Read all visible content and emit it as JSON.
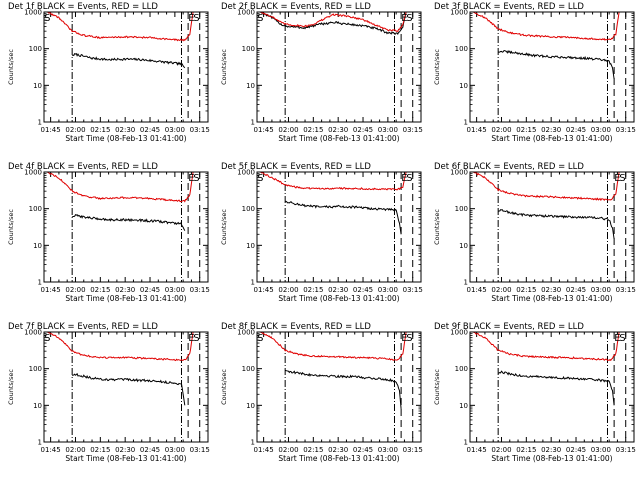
{
  "colors": {
    "events": "#000000",
    "lld": "#e00000",
    "axes": "#000000",
    "background": "#ffffff"
  },
  "chart_data": [
    {
      "type": "line",
      "title": "Det 1f BLACK = Events, RED = LLD",
      "xlabel": "Start Time (08-Feb-13 01:41:00)",
      "ylabel": "Counts/sec",
      "yscale": "log",
      "ylim": [
        1,
        1000
      ],
      "ytick_labels": [
        "1",
        "10",
        "100",
        "1000"
      ],
      "xlim": [
        "01:41",
        "03:20"
      ],
      "xtick_labels": [
        "01:45",
        "02:00",
        "02:15",
        "02:30",
        "02:45",
        "03:00",
        "03:15"
      ],
      "grid": false,
      "legend": "none",
      "markers": [
        {
          "label": "S",
          "x": "01:43"
        },
        {
          "label": "E",
          "x": "03:10"
        },
        {
          "label": "S",
          "x": "03:13"
        }
      ],
      "dashdot_lines": [
        "01:58",
        "03:04"
      ],
      "dashed_lines": [
        "03:08",
        "03:15"
      ],
      "series": [
        {
          "name": "Events",
          "color": "#000000",
          "x": [
            "01:58",
            "02:00",
            "02:10",
            "02:20",
            "02:30",
            "02:40",
            "02:50",
            "03:00",
            "03:04",
            "03:06"
          ],
          "values": [
            65,
            70,
            55,
            50,
            52,
            50,
            45,
            40,
            38,
            30
          ]
        },
        {
          "name": "LLD",
          "color": "#e00000",
          "x": [
            "01:43",
            "01:50",
            "01:58",
            "02:05",
            "02:15",
            "02:30",
            "02:45",
            "03:00",
            "03:06",
            "03:09",
            "03:11"
          ],
          "values": [
            1000,
            700,
            300,
            230,
            200,
            210,
            200,
            175,
            170,
            250,
            1000
          ]
        }
      ]
    },
    {
      "type": "line",
      "title": "Det 2f BLACK = Events, RED = LLD",
      "xlabel": "Start Time (08-Feb-13 01:41:00)",
      "ylabel": "Counts/sec",
      "yscale": "log",
      "ylim": [
        1,
        1000
      ],
      "ytick_labels": [
        "1",
        "10",
        "100",
        "1000"
      ],
      "xlim": [
        "01:41",
        "03:20"
      ],
      "xtick_labels": [
        "01:45",
        "02:00",
        "02:15",
        "02:30",
        "02:45",
        "03:00",
        "03:15"
      ],
      "grid": false,
      "legend": "none",
      "markers": [
        {
          "label": "S",
          "x": "01:43"
        },
        {
          "label": "E",
          "x": "03:10"
        },
        {
          "label": "S",
          "x": "03:13"
        }
      ],
      "dashdot_lines": [
        "01:58",
        "03:04"
      ],
      "dashed_lines": [
        "03:08",
        "03:15"
      ],
      "series": [
        {
          "name": "Events",
          "color": "#000000",
          "x": [
            "01:43",
            "01:50",
            "01:56",
            "02:00",
            "02:10",
            "02:15",
            "02:20",
            "02:27",
            "02:35",
            "02:45",
            "02:52",
            "03:00",
            "03:06",
            "03:09",
            "03:11"
          ],
          "values": [
            1000,
            700,
            450,
            400,
            370,
            420,
            470,
            520,
            470,
            420,
            360,
            270,
            260,
            380,
            1000
          ]
        },
        {
          "name": "LLD",
          "color": "#e00000",
          "x": [
            "01:43",
            "01:50",
            "01:56",
            "02:00",
            "02:10",
            "02:15",
            "02:20",
            "02:27",
            "02:35",
            "02:45",
            "02:52",
            "03:00",
            "03:06",
            "03:09",
            "03:11"
          ],
          "values": [
            1000,
            750,
            500,
            450,
            410,
            460,
            600,
            850,
            780,
            620,
            450,
            320,
            310,
            450,
            1000
          ]
        }
      ]
    },
    {
      "type": "line",
      "title": "Det 3f BLACK = Events, RED = LLD",
      "xlabel": "Start Time (08-Feb-13 01:41:00)",
      "ylabel": "Counts/sec",
      "yscale": "log",
      "ylim": [
        1,
        1000
      ],
      "ytick_labels": [
        "1",
        "10",
        "100",
        "1000"
      ],
      "xlim": [
        "01:41",
        "03:20"
      ],
      "xtick_labels": [
        "01:45",
        "02:00",
        "02:15",
        "02:30",
        "02:45",
        "03:00",
        "03:15"
      ],
      "grid": false,
      "legend": "none",
      "markers": [],
      "dashdot_lines": [
        "01:58",
        "03:04"
      ],
      "dashed_lines": [
        "03:08",
        "03:15"
      ],
      "series": [
        {
          "name": "Events",
          "color": "#000000",
          "x": [
            "01:58",
            "02:00",
            "02:10",
            "02:20",
            "02:30",
            "02:40",
            "02:50",
            "03:00",
            "03:05",
            "03:07",
            "03:08"
          ],
          "values": [
            80,
            85,
            75,
            65,
            60,
            58,
            55,
            50,
            45,
            30,
            15
          ]
        },
        {
          "name": "LLD",
          "color": "#e00000",
          "x": [
            "01:43",
            "01:50",
            "01:58",
            "02:05",
            "02:15",
            "02:30",
            "02:45",
            "03:00",
            "03:06",
            "03:09",
            "03:11"
          ],
          "values": [
            1000,
            700,
            350,
            270,
            230,
            210,
            200,
            180,
            175,
            250,
            1000
          ]
        }
      ]
    },
    {
      "type": "line",
      "title": "Det 4f BLACK = Events, RED = LLD",
      "xlabel": "Start Time (08-Feb-13 01:41:00)",
      "ylabel": "Counts/sec",
      "yscale": "log",
      "ylim": [
        1,
        1000
      ],
      "ytick_labels": [
        "1",
        "10",
        "100",
        "1000"
      ],
      "xlim": [
        "01:41",
        "03:20"
      ],
      "xtick_labels": [
        "01:45",
        "02:00",
        "02:15",
        "02:30",
        "02:45",
        "03:00",
        "03:15"
      ],
      "grid": false,
      "legend": "none",
      "markers": [
        {
          "label": "E",
          "x": "03:10"
        },
        {
          "label": "S",
          "x": "03:13"
        }
      ],
      "dashdot_lines": [
        "01:58",
        "03:04"
      ],
      "dashed_lines": [
        "03:08",
        "03:15"
      ],
      "series": [
        {
          "name": "Events",
          "color": "#000000",
          "x": [
            "01:58",
            "02:00",
            "02:10",
            "02:20",
            "02:30",
            "02:40",
            "02:50",
            "03:00",
            "03:04",
            "03:06"
          ],
          "values": [
            60,
            65,
            55,
            50,
            50,
            48,
            45,
            40,
            38,
            25
          ]
        },
        {
          "name": "LLD",
          "color": "#e00000",
          "x": [
            "01:43",
            "01:50",
            "01:58",
            "02:05",
            "02:15",
            "02:30",
            "02:45",
            "03:00",
            "03:06",
            "03:09",
            "03:11"
          ],
          "values": [
            1000,
            700,
            300,
            220,
            190,
            200,
            190,
            165,
            160,
            240,
            1000
          ]
        }
      ]
    },
    {
      "type": "line",
      "title": "Det 5f BLACK = Events, RED = LLD",
      "xlabel": "Start Time (08-Feb-13 01:41:00)",
      "ylabel": "Counts/sec",
      "yscale": "log",
      "ylim": [
        1,
        1000
      ],
      "ytick_labels": [
        "1",
        "10",
        "100",
        "1000"
      ],
      "xlim": [
        "01:41",
        "03:20"
      ],
      "xtick_labels": [
        "01:45",
        "02:00",
        "02:15",
        "02:30",
        "02:45",
        "03:00",
        "03:15"
      ],
      "grid": false,
      "legend": "none",
      "markers": [
        {
          "label": "S",
          "x": "01:43"
        },
        {
          "label": "E",
          "x": "03:10"
        },
        {
          "label": "S",
          "x": "03:13"
        }
      ],
      "dashdot_lines": [
        "01:58",
        "03:04"
      ],
      "dashed_lines": [
        "03:08",
        "03:15"
      ],
      "series": [
        {
          "name": "Events",
          "color": "#000000",
          "x": [
            "01:58",
            "02:00",
            "02:10",
            "02:20",
            "02:30",
            "02:40",
            "02:50",
            "03:00",
            "03:05",
            "03:07",
            "03:08"
          ],
          "values": [
            160,
            150,
            120,
            110,
            115,
            110,
            100,
            95,
            90,
            40,
            20
          ]
        },
        {
          "name": "LLD",
          "color": "#e00000",
          "x": [
            "01:43",
            "01:50",
            "01:58",
            "02:05",
            "02:15",
            "02:30",
            "02:45",
            "03:00",
            "03:06",
            "03:09",
            "03:11"
          ],
          "values": [
            1000,
            700,
            450,
            380,
            350,
            360,
            350,
            340,
            330,
            400,
            1000
          ]
        }
      ]
    },
    {
      "type": "line",
      "title": "Det 6f BLACK = Events, RED = LLD",
      "xlabel": "Start Time (08-Feb-13 01:41:00)",
      "ylabel": "Counts/sec",
      "yscale": "log",
      "ylim": [
        1,
        1000
      ],
      "ytick_labels": [
        "1",
        "10",
        "100",
        "1000"
      ],
      "xlim": [
        "01:41",
        "03:20"
      ],
      "xtick_labels": [
        "01:45",
        "02:00",
        "02:15",
        "02:30",
        "02:45",
        "03:00",
        "03:15"
      ],
      "grid": false,
      "legend": "none",
      "markers": [
        {
          "label": "E",
          "x": "03:10"
        },
        {
          "label": "S",
          "x": "03:13"
        }
      ],
      "dashdot_lines": [
        "01:58",
        "03:04"
      ],
      "dashed_lines": [
        "03:08",
        "03:15"
      ],
      "series": [
        {
          "name": "Events",
          "color": "#000000",
          "x": [
            "01:58",
            "02:00",
            "02:10",
            "02:20",
            "02:30",
            "02:40",
            "02:50",
            "03:00",
            "03:05",
            "03:07",
            "03:08"
          ],
          "values": [
            85,
            90,
            70,
            65,
            62,
            60,
            58,
            55,
            50,
            30,
            15
          ]
        },
        {
          "name": "LLD",
          "color": "#e00000",
          "x": [
            "01:43",
            "01:50",
            "01:58",
            "02:05",
            "02:15",
            "02:30",
            "02:45",
            "03:00",
            "03:06",
            "03:09",
            "03:11"
          ],
          "values": [
            1000,
            700,
            330,
            260,
            220,
            210,
            195,
            180,
            175,
            250,
            1000
          ]
        }
      ]
    },
    {
      "type": "line",
      "title": "Det 7f BLACK = Events, RED = LLD",
      "xlabel": "Start Time (08-Feb-13 01:41:00)",
      "ylabel": "Counts/sec",
      "yscale": "log",
      "ylim": [
        1,
        1000
      ],
      "ytick_labels": [
        "1",
        "10",
        "100",
        "1000"
      ],
      "xlim": [
        "01:41",
        "03:20"
      ],
      "xtick_labels": [
        "01:45",
        "02:00",
        "02:15",
        "02:30",
        "02:45",
        "03:00",
        "03:15"
      ],
      "grid": false,
      "legend": "none",
      "markers": [
        {
          "label": "S",
          "x": "01:43"
        },
        {
          "label": "E",
          "x": "03:10"
        },
        {
          "label": "S",
          "x": "03:13"
        }
      ],
      "dashdot_lines": [
        "01:58",
        "03:04"
      ],
      "dashed_lines": [
        "03:08",
        "03:15"
      ],
      "series": [
        {
          "name": "Events",
          "color": "#000000",
          "x": [
            "01:58",
            "02:00",
            "02:10",
            "02:20",
            "02:30",
            "02:40",
            "02:50",
            "03:00",
            "03:04",
            "03:06"
          ],
          "values": [
            65,
            70,
            55,
            50,
            50,
            48,
            45,
            40,
            38,
            10
          ]
        },
        {
          "name": "LLD",
          "color": "#e00000",
          "x": [
            "01:43",
            "01:50",
            "01:58",
            "02:05",
            "02:15",
            "02:30",
            "02:45",
            "03:00",
            "03:06",
            "03:09",
            "03:11"
          ],
          "values": [
            1000,
            700,
            300,
            230,
            200,
            200,
            190,
            175,
            170,
            250,
            1000
          ]
        }
      ]
    },
    {
      "type": "line",
      "title": "Det 8f BLACK = Events, RED = LLD",
      "xlabel": "Start Time (08-Feb-13 01:41:00)",
      "ylabel": "Counts/sec",
      "yscale": "log",
      "ylim": [
        1,
        1000
      ],
      "ytick_labels": [
        "1",
        "10",
        "100",
        "1000"
      ],
      "xlim": [
        "01:41",
        "03:20"
      ],
      "xtick_labels": [
        "01:45",
        "02:00",
        "02:15",
        "02:30",
        "02:45",
        "03:00",
        "03:15"
      ],
      "grid": false,
      "legend": "none",
      "markers": [
        {
          "label": "S",
          "x": "01:43"
        },
        {
          "label": "E",
          "x": "03:10"
        },
        {
          "label": "S",
          "x": "03:13"
        }
      ],
      "dashdot_lines": [
        "01:58",
        "03:04"
      ],
      "dashed_lines": [
        "03:08",
        "03:15"
      ],
      "series": [
        {
          "name": "Events",
          "color": "#000000",
          "x": [
            "01:58",
            "02:00",
            "02:10",
            "02:20",
            "02:30",
            "02:40",
            "02:50",
            "03:00",
            "03:05",
            "03:07",
            "03:08"
          ],
          "values": [
            90,
            85,
            70,
            65,
            62,
            60,
            55,
            50,
            45,
            25,
            8
          ]
        },
        {
          "name": "LLD",
          "color": "#e00000",
          "x": [
            "01:43",
            "01:50",
            "01:58",
            "02:05",
            "02:15",
            "02:30",
            "02:45",
            "03:00",
            "03:06",
            "03:09",
            "03:11"
          ],
          "values": [
            1000,
            700,
            320,
            250,
            220,
            210,
            200,
            185,
            175,
            250,
            1000
          ]
        }
      ]
    },
    {
      "type": "line",
      "title": "Det 9f BLACK = Events, RED = LLD",
      "xlabel": "Start Time (08-Feb-13 01:41:00)",
      "ylabel": "Counts/sec",
      "yscale": "log",
      "ylim": [
        1,
        1000
      ],
      "ytick_labels": [
        "1",
        "10",
        "100",
        "1000"
      ],
      "xlim": [
        "01:41",
        "03:20"
      ],
      "xtick_labels": [
        "01:45",
        "02:00",
        "02:15",
        "02:30",
        "02:45",
        "03:00",
        "03:15"
      ],
      "grid": false,
      "legend": "none",
      "markers": [
        {
          "label": "E",
          "x": "03:10"
        },
        {
          "label": "S",
          "x": "03:13"
        }
      ],
      "dashdot_lines": [
        "01:58",
        "03:04"
      ],
      "dashed_lines": [
        "03:08",
        "03:15"
      ],
      "series": [
        {
          "name": "Events",
          "color": "#000000",
          "x": [
            "01:58",
            "02:00",
            "02:10",
            "02:20",
            "02:30",
            "02:40",
            "02:50",
            "03:00",
            "03:05",
            "03:07",
            "03:08"
          ],
          "values": [
            75,
            80,
            65,
            60,
            58,
            55,
            52,
            48,
            45,
            25,
            10
          ]
        },
        {
          "name": "LLD",
          "color": "#e00000",
          "x": [
            "01:43",
            "01:50",
            "01:58",
            "02:05",
            "02:15",
            "02:30",
            "02:45",
            "03:00",
            "03:06",
            "03:09",
            "03:11"
          ],
          "values": [
            1000,
            700,
            320,
            250,
            215,
            205,
            195,
            180,
            175,
            250,
            1000
          ]
        }
      ]
    }
  ]
}
